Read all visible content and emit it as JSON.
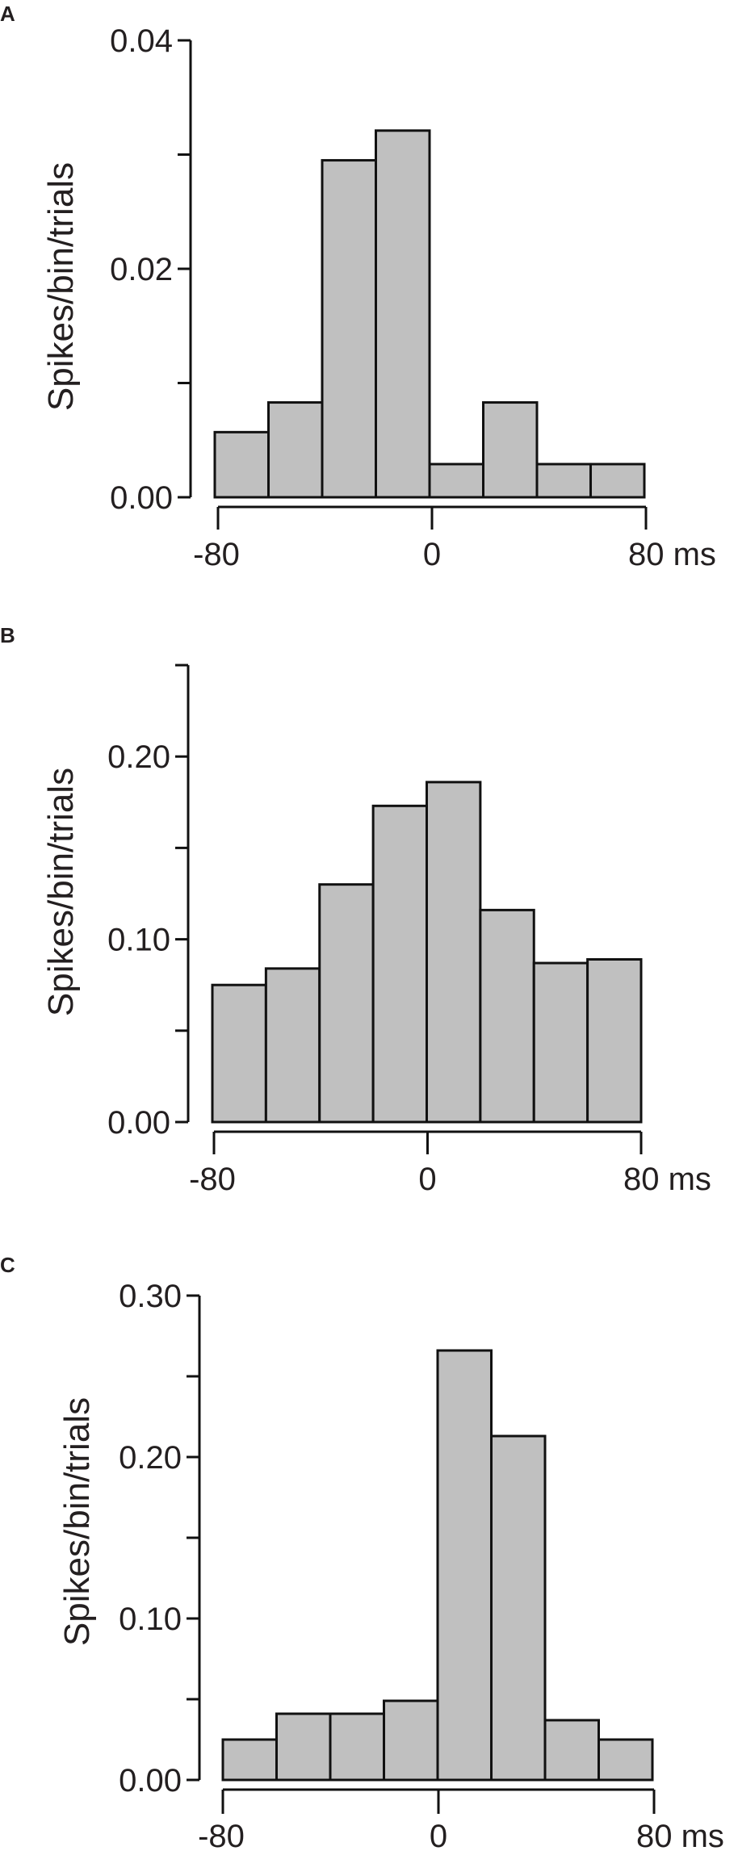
{
  "chart_data": [
    {
      "type": "bar",
      "panel": "A",
      "ylabel": "Spikes/bin/trials",
      "xlabel": "",
      "x_unit": "ms",
      "bin_edges": [
        -80,
        -60,
        -40,
        -20,
        0,
        20,
        40,
        60,
        80
      ],
      "values": [
        0.0057,
        0.0083,
        0.0295,
        0.0321,
        0.0029,
        0.0083,
        0.0029,
        0.0029
      ],
      "ylim": [
        0,
        0.04
      ],
      "xlim": [
        -80,
        80
      ],
      "ytick_labels": [
        {
          "value": 0.0,
          "label": "0.00"
        },
        {
          "value": 0.02,
          "label": "0.02"
        },
        {
          "value": 0.04,
          "label": "0.04"
        }
      ],
      "yminor": [
        0.01,
        0.03
      ],
      "xtick_labels": [
        {
          "value": -80,
          "label": "-80"
        },
        {
          "value": 0,
          "label": "0"
        },
        {
          "value": 80,
          "label": "80 ms"
        }
      ],
      "grid": false
    },
    {
      "type": "bar",
      "panel": "B",
      "ylabel": "Spikes/bin/trials",
      "xlabel": "",
      "x_unit": "ms",
      "bin_edges": [
        -80,
        -60,
        -40,
        -20,
        0,
        20,
        40,
        60,
        80
      ],
      "values": [
        0.075,
        0.084,
        0.13,
        0.173,
        0.186,
        0.116,
        0.087,
        0.089
      ],
      "ylim": [
        0,
        0.25
      ],
      "xlim": [
        -80,
        80
      ],
      "ytick_labels": [
        {
          "value": 0.0,
          "label": "0.00"
        },
        {
          "value": 0.1,
          "label": "0.10"
        },
        {
          "value": 0.2,
          "label": "0.20"
        }
      ],
      "yminor": [
        0.05,
        0.15,
        0.25
      ],
      "xtick_labels": [
        {
          "value": -80,
          "label": "-80"
        },
        {
          "value": 0,
          "label": "0"
        },
        {
          "value": 80,
          "label": "80 ms"
        }
      ],
      "grid": false
    },
    {
      "type": "bar",
      "panel": "C",
      "ylabel": "Spikes/bin/trials",
      "xlabel": "",
      "x_unit": "ms",
      "bin_edges": [
        -80,
        -60,
        -40,
        -20,
        0,
        20,
        40,
        60,
        80
      ],
      "values": [
        0.025,
        0.041,
        0.041,
        0.049,
        0.266,
        0.213,
        0.037,
        0.025
      ],
      "ylim": [
        0,
        0.3
      ],
      "xlim": [
        -80,
        80
      ],
      "ytick_labels": [
        {
          "value": 0.0,
          "label": "0.00"
        },
        {
          "value": 0.1,
          "label": "0.10"
        },
        {
          "value": 0.2,
          "label": "0.20"
        },
        {
          "value": 0.3,
          "label": "0.30"
        }
      ],
      "yminor": [
        0.05,
        0.15,
        0.25
      ],
      "xtick_labels": [
        {
          "value": -80,
          "label": "-80"
        },
        {
          "value": 0,
          "label": "0"
        },
        {
          "value": 80,
          "label": "80 ms"
        }
      ],
      "grid": false
    }
  ]
}
